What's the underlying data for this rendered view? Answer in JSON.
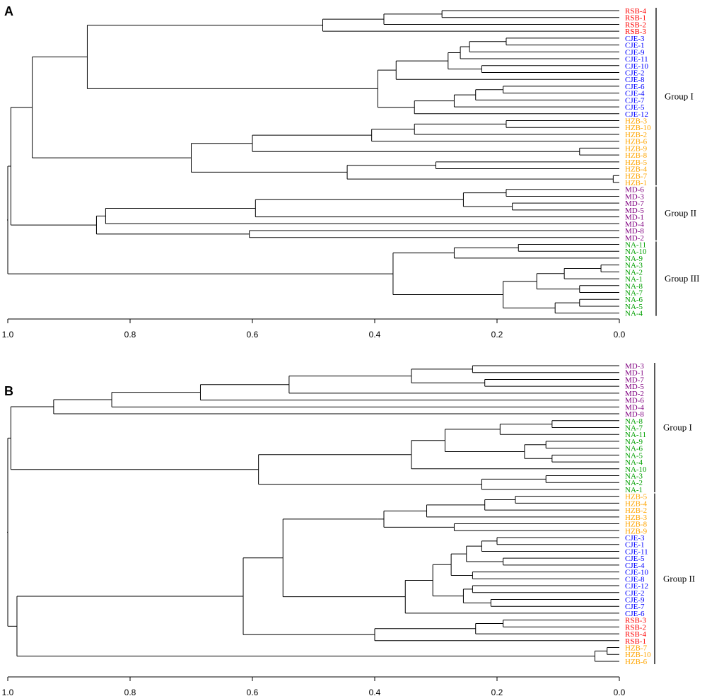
{
  "colors": {
    "RSB": "#ff0000",
    "CJE": "#0000ff",
    "HZB": "#ffa500",
    "MD": "#800080",
    "NA": "#00a000",
    "line": "#000000"
  },
  "chart_data": [
    {
      "type": "dendrogram",
      "panel": "A",
      "axis": {
        "xlim": [
          1.0,
          0.0
        ],
        "ticks": [
          1.0,
          0.8,
          0.6,
          0.4,
          0.2,
          0.0
        ],
        "tick_labels": [
          "1.0",
          "0.8",
          "0.6",
          "0.4",
          "0.2",
          "0.0"
        ]
      },
      "leaves": [
        {
          "label": "RSB-4",
          "population": "RSB"
        },
        {
          "label": "RSB-1",
          "population": "RSB"
        },
        {
          "label": "RSB-2",
          "population": "RSB"
        },
        {
          "label": "RSB-3",
          "population": "RSB"
        },
        {
          "label": "CJE-3",
          "population": "CJE"
        },
        {
          "label": "CJE-1",
          "population": "CJE"
        },
        {
          "label": "CJE-9",
          "population": "CJE"
        },
        {
          "label": "CJE-11",
          "population": "CJE"
        },
        {
          "label": "CJE-10",
          "population": "CJE"
        },
        {
          "label": "CJE-2",
          "population": "CJE"
        },
        {
          "label": "CJE-8",
          "population": "CJE"
        },
        {
          "label": "CJE-6",
          "population": "CJE"
        },
        {
          "label": "CJE-4",
          "population": "CJE"
        },
        {
          "label": "CJE-7",
          "population": "CJE"
        },
        {
          "label": "CJE-5",
          "population": "CJE"
        },
        {
          "label": "CJE-12",
          "population": "CJE"
        },
        {
          "label": "HZB-3",
          "population": "HZB"
        },
        {
          "label": "HZB-10",
          "population": "HZB"
        },
        {
          "label": "HZB-2",
          "population": "HZB"
        },
        {
          "label": "HZB-6",
          "population": "HZB"
        },
        {
          "label": "HZB-9",
          "population": "HZB"
        },
        {
          "label": "HZB-8",
          "population": "HZB"
        },
        {
          "label": "HZB-5",
          "population": "HZB"
        },
        {
          "label": "HZB-4",
          "population": "HZB"
        },
        {
          "label": "HZB-7",
          "population": "HZB"
        },
        {
          "label": "HZB-1",
          "population": "HZB"
        },
        {
          "label": "MD-6",
          "population": "MD"
        },
        {
          "label": "MD-3",
          "population": "MD"
        },
        {
          "label": "MD-7",
          "population": "MD"
        },
        {
          "label": "MD-5",
          "population": "MD"
        },
        {
          "label": "MD-1",
          "population": "MD"
        },
        {
          "label": "MD-4",
          "population": "MD"
        },
        {
          "label": "MD-8",
          "population": "MD"
        },
        {
          "label": "MD-2",
          "population": "MD"
        },
        {
          "label": "NA-11",
          "population": "NA"
        },
        {
          "label": "NA-10",
          "population": "NA"
        },
        {
          "label": "NA-9",
          "population": "NA"
        },
        {
          "label": "NA-3",
          "population": "NA"
        },
        {
          "label": "NA-2",
          "population": "NA"
        },
        {
          "label": "NA-1",
          "population": "NA"
        },
        {
          "label": "NA-8",
          "population": "NA"
        },
        {
          "label": "NA-7",
          "population": "NA"
        },
        {
          "label": "NA-6",
          "population": "NA"
        },
        {
          "label": "NA-5",
          "population": "NA"
        },
        {
          "label": "NA-4",
          "population": "NA"
        }
      ],
      "tree": [
        1.0,
        [
          0.995,
          [
            0.96,
            [
              0.87,
              [
                0.485,
                [
                  0.385,
                  [
                    0.29,
                    0,
                    1
                  ],
                  2
                ],
                3
              ],
              [
                0.395,
                [
                  0.365,
                  [
                    0.28,
                    [
                      0.26,
                      [
                        0.245,
                        [
                          0.185,
                          4,
                          5
                        ],
                        6
                      ],
                      7
                    ],
                    [
                      0.225,
                      8,
                      9
                    ]
                  ],
                  10
                ],
                [
                  0.335,
                  [
                    0.27,
                    [
                      0.235,
                      [
                        0.19,
                        11,
                        12
                      ],
                      13
                    ],
                    14
                  ],
                  15
                ]
              ]
            ],
            [
              0.7,
              [
                0.6,
                [
                  0.405,
                  [
                    0.335,
                    [
                      0.185,
                      16,
                      17
                    ],
                    18
                  ],
                  19
                ],
                [
                  0.065,
                  20,
                  21
                ]
              ],
              [
                0.445,
                [
                  0.3,
                  22,
                  23
                ],
                [
                  0.01,
                  24,
                  25
                ]
              ]
            ]
          ],
          [
            0.855,
            [
              0.84,
              [
                0.595,
                [
                  0.255,
                  [
                    0.185,
                    26,
                    27
                  ],
                  [
                    0.175,
                    28,
                    29
                  ]
                ],
                30
              ],
              31
            ],
            [
              0.605,
              32,
              33
            ]
          ]
        ],
        [
          0.37,
          [
            0.27,
            [
              0.165,
              34,
              35
            ],
            36
          ],
          [
            0.19,
            [
              0.135,
              [
                0.09,
                [
                  0.03,
                  37,
                  38
                ],
                39
              ],
              [
                0.065,
                40,
                41
              ]
            ],
            [
              0.105,
              [
                0.065,
                42,
                43
              ],
              44
            ]
          ]
        ]
      ],
      "groups": [
        {
          "label": "Group I",
          "first": 0,
          "last": 25
        },
        {
          "label": "Group II",
          "first": 26,
          "last": 33
        },
        {
          "label": "Group III",
          "first": 34,
          "last": 44
        }
      ]
    },
    {
      "type": "dendrogram",
      "panel": "B",
      "axis": {
        "xlim": [
          1.0,
          0.0
        ],
        "ticks": [
          1.0,
          0.8,
          0.6,
          0.4,
          0.2,
          0.0
        ],
        "tick_labels": [
          "1.0",
          "0.8",
          "0.6",
          "0.4",
          "0.2",
          "0.0"
        ]
      },
      "leaves": [
        {
          "label": "MD-3",
          "population": "MD"
        },
        {
          "label": "MD-1",
          "population": "MD"
        },
        {
          "label": "MD-7",
          "population": "MD"
        },
        {
          "label": "MD-5",
          "population": "MD"
        },
        {
          "label": "MD-2",
          "population": "MD"
        },
        {
          "label": "MD-6",
          "population": "MD"
        },
        {
          "label": "MD-4",
          "population": "MD"
        },
        {
          "label": "MD-8",
          "population": "MD"
        },
        {
          "label": "NA-8",
          "population": "NA"
        },
        {
          "label": "NA-7",
          "population": "NA"
        },
        {
          "label": "NA-11",
          "population": "NA"
        },
        {
          "label": "NA-9",
          "population": "NA"
        },
        {
          "label": "NA-6",
          "population": "NA"
        },
        {
          "label": "NA-5",
          "population": "NA"
        },
        {
          "label": "NA-4",
          "population": "NA"
        },
        {
          "label": "NA-10",
          "population": "NA"
        },
        {
          "label": "NA-3",
          "population": "NA"
        },
        {
          "label": "NA-2",
          "population": "NA"
        },
        {
          "label": "NA-1",
          "population": "NA"
        },
        {
          "label": "HZB-5",
          "population": "HZB"
        },
        {
          "label": "HZB-4",
          "population": "HZB"
        },
        {
          "label": "HZB-2",
          "population": "HZB"
        },
        {
          "label": "HZB-3",
          "population": "HZB"
        },
        {
          "label": "HZB-8",
          "population": "HZB"
        },
        {
          "label": "HZB-9",
          "population": "HZB"
        },
        {
          "label": "CJE-3",
          "population": "CJE"
        },
        {
          "label": "CJE-1",
          "population": "CJE"
        },
        {
          "label": "CJE-11",
          "population": "CJE"
        },
        {
          "label": "CJE-5",
          "population": "CJE"
        },
        {
          "label": "CJE-4",
          "population": "CJE"
        },
        {
          "label": "CJE-10",
          "population": "CJE"
        },
        {
          "label": "CJE-8",
          "population": "CJE"
        },
        {
          "label": "CJE-12",
          "population": "CJE"
        },
        {
          "label": "CJE-2",
          "population": "CJE"
        },
        {
          "label": "CJE-9",
          "population": "CJE"
        },
        {
          "label": "CJE-7",
          "population": "CJE"
        },
        {
          "label": "CJE-6",
          "population": "CJE"
        },
        {
          "label": "RSB-3",
          "population": "RSB"
        },
        {
          "label": "RSB-2",
          "population": "RSB"
        },
        {
          "label": "RSB-4",
          "population": "RSB"
        },
        {
          "label": "RSB-1",
          "population": "RSB"
        },
        {
          "label": "HZB-7",
          "population": "HZB"
        },
        {
          "label": "HZB-10",
          "population": "HZB"
        },
        {
          "label": "HZB-6",
          "population": "HZB"
        }
      ],
      "tree": [
        1.0,
        [
          0.995,
          [
            0.925,
            [
              0.83,
              [
                0.685,
                [
                  0.54,
                  [
                    0.34,
                    [
                      0.24,
                      0,
                      1
                    ],
                    [
                      0.22,
                      2,
                      3
                    ]
                  ],
                  4
                ],
                5
              ],
              6
            ],
            7
          ],
          [
            0.59,
            [
              0.34,
              [
                0.285,
                [
                  0.195,
                  [
                    0.11,
                    8,
                    9
                  ],
                  10
                ],
                [
                  0.155,
                  [
                    0.12,
                    11,
                    12
                  ],
                  [
                    0.11,
                    13,
                    14
                  ]
                ]
              ],
              15
            ],
            [
              0.225,
              [
                0.12,
                16,
                17
              ],
              18
            ]
          ]
        ],
        [
          0.985,
          [
            0.615,
            [
              0.55,
              [
                0.395,
                [
                  0.385,
                  [
                    0.315,
                    [
                      0.22,
                      [
                        0.17,
                        19,
                        20
                      ],
                      21
                    ],
                    22
                  ],
                  [
                    0.27,
                    23,
                    24
                  ]
                ]
              ],
              [
                0.35,
                [
                  0.305,
                  [
                    0.275,
                    [
                      0.25,
                      [
                        0.225,
                        [
                          0.2,
                          25,
                          26
                        ],
                        27
                      ],
                      [
                        0.19,
                        28,
                        29
                      ]
                    ],
                    [
                      0.24,
                      30,
                      31
                    ]
                  ],
                  [
                    0.255,
                    [
                      0.24,
                      32,
                      33
                    ],
                    [
                      0.21,
                      34,
                      35
                    ]
                  ]
                ],
                36
              ]
            ],
            [
              0.4,
              [
                0.235,
                [
                  0.19,
                  37,
                  38
                ],
                39
              ],
              40
            ]
          ],
          [
            0.04,
            [
              0.02,
              41,
              42
            ],
            43
          ]
        ]
      ],
      "groups": [
        {
          "label": "Group I",
          "first": 0,
          "last": 18
        },
        {
          "label": "Group II",
          "first": 19,
          "last": 43
        }
      ]
    }
  ]
}
